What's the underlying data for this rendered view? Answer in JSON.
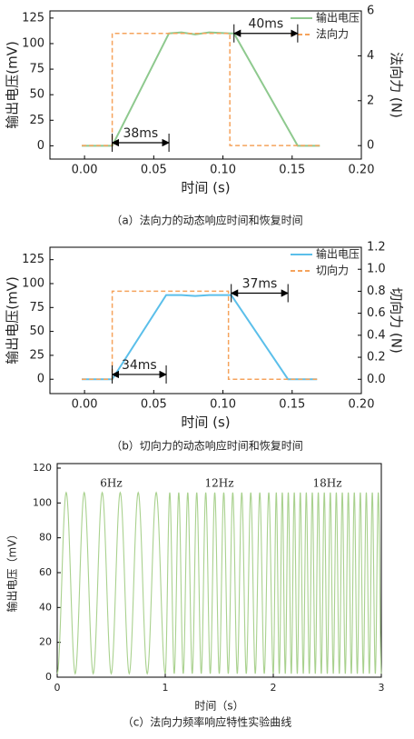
{
  "chart_data": [
    {
      "type": "line",
      "caption": "（a）法向力的动态响应时间和恢复时间",
      "x_label": "时间 (s)",
      "y_label": "输出电压(mV)",
      "y2_label": "法向力 (N)",
      "x": [
        -0.002,
        0.02,
        0.02,
        0.061,
        0.07,
        0.08,
        0.09,
        0.105,
        0.105,
        0.108,
        0.154,
        0.17
      ],
      "series": [
        {
          "name": "输出电压",
          "color": "#8ec98e",
          "dash": false,
          "values": [
            0,
            0,
            0,
            110,
            111,
            109,
            111,
            110,
            110,
            110,
            0,
            0
          ]
        },
        {
          "name": "法向力",
          "color": "#f5a35c",
          "dash": true,
          "axis": "y2",
          "values": [
            0,
            0,
            5,
            5,
            5,
            5,
            5,
            5,
            0,
            0,
            0,
            0
          ]
        }
      ],
      "annotations": [
        {
          "text": "38ms",
          "x": [
            0.02,
            0.061
          ],
          "y": 3
        },
        {
          "text": "40ms",
          "x": [
            0.108,
            0.154
          ],
          "y": 110
        }
      ],
      "xlim": [
        -0.025,
        0.2
      ],
      "xticks": [
        {
          "value": 0,
          "label": "0.00"
        },
        0.05,
        {
          "value": 0.1,
          "label": "0.10"
        },
        0.15,
        {
          "value": 0.2,
          "label": "0.20"
        }
      ],
      "ylim": [
        -13,
        132
      ],
      "yticks": [
        0,
        25,
        50,
        75,
        100,
        125
      ],
      "y2lim": [
        -0.6,
        6
      ],
      "y2ticks": [
        0,
        2,
        4,
        6
      ],
      "legend": "upper right"
    },
    {
      "type": "line",
      "caption": "（b）切向力的动态响应时间和恢复时间",
      "x_label": "时间 (s)",
      "y_label": "输出电压(mV)",
      "y2_label": "切向力 (N)",
      "x": [
        -0.002,
        0.02,
        0.02,
        0.059,
        0.07,
        0.08,
        0.09,
        0.104,
        0.104,
        0.106,
        0.147,
        0.168
      ],
      "series": [
        {
          "name": "输出电压",
          "color": "#5bbfea",
          "dash": false,
          "values": [
            0,
            0,
            0,
            88,
            88,
            87,
            88,
            88,
            88,
            88,
            0,
            0
          ]
        },
        {
          "name": "切向力",
          "color": "#f5a35c",
          "dash": true,
          "axis": "y2",
          "values": [
            0,
            0,
            0.8,
            0.8,
            0.8,
            0.8,
            0.8,
            0.8,
            0,
            0,
            0,
            0
          ]
        }
      ],
      "annotations": [
        {
          "text": "34ms",
          "x": [
            0.02,
            0.059
          ],
          "y": 5
        },
        {
          "text": "37ms",
          "x": [
            0.106,
            0.147
          ],
          "y": 90
        }
      ],
      "xlim": [
        -0.025,
        0.2
      ],
      "xticks": [
        {
          "value": 0,
          "label": "0.00"
        },
        0.05,
        {
          "value": 0.1,
          "label": "0.10"
        },
        0.15,
        {
          "value": 0.2,
          "label": "0.20"
        }
      ],
      "ylim": [
        -15,
        138
      ],
      "yticks": [
        0,
        25,
        50,
        75,
        100,
        125
      ],
      "y2lim": [
        -0.13,
        1.2
      ],
      "y2ticks": [
        {
          "value": 0,
          "label": "0.0"
        },
        0.2,
        0.4,
        0.6,
        0.8,
        {
          "value": 1,
          "label": "1.0"
        },
        1.2
      ],
      "legend": "upper right"
    },
    {
      "type": "sweep",
      "caption": "（c）法向力频率响应特性实验曲线",
      "x_label": "时间（s）",
      "y_label": "输出电压（mV）",
      "color": "#a9d18e",
      "segments": [
        {
          "label": "6Hz",
          "frequency": 6,
          "x": [
            0,
            1
          ],
          "min": 2,
          "max": 106
        },
        {
          "label": "12Hz",
          "frequency": 12,
          "x": [
            1,
            2
          ],
          "min": 2,
          "max": 106
        },
        {
          "label": "18Hz",
          "frequency": 18,
          "x": [
            2,
            3
          ],
          "min": 2,
          "max": 106
        }
      ],
      "xlim": [
        0,
        3
      ],
      "xticks": [
        0,
        1,
        2,
        3
      ],
      "ylim": [
        0,
        122.6
      ],
      "yticks": [
        0,
        20,
        40,
        60,
        80,
        100,
        120
      ]
    }
  ]
}
